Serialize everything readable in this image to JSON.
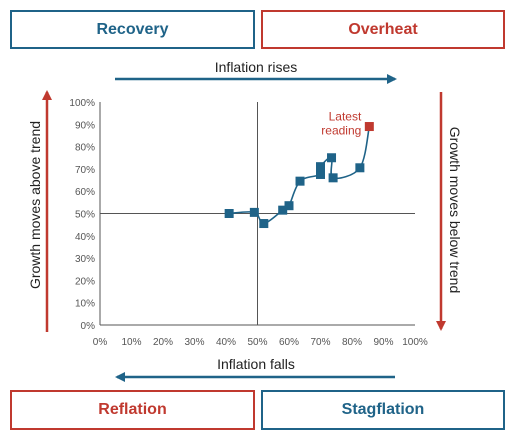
{
  "quadrants": {
    "top_left": "Recovery",
    "top_right": "Overheat",
    "bottom_left": "Reflation",
    "bottom_right": "Stagflation"
  },
  "arrows": {
    "top": "Inflation rises",
    "bottom": "Inflation falls",
    "left": "Growth moves above trend",
    "right": "Growth moves below trend"
  },
  "colors": {
    "blue": "#1f6388",
    "red": "#c0392f",
    "grid": "#555555"
  },
  "chart_data": {
    "type": "scatter",
    "title": "",
    "xlabel": "",
    "ylabel": "",
    "xlim": [
      0,
      100
    ],
    "ylim": [
      0,
      100
    ],
    "x_ticks": [
      "0%",
      "10%",
      "20%",
      "30%",
      "40%",
      "50%",
      "60%",
      "70%",
      "80%",
      "90%",
      "100%"
    ],
    "y_ticks": [
      "0%",
      "10%",
      "20%",
      "30%",
      "40%",
      "50%",
      "60%",
      "70%",
      "80%",
      "90%",
      "100%"
    ],
    "reference_lines": {
      "x": 50,
      "y": 50
    },
    "series": [
      {
        "points": [
          {
            "x": 41,
            "y": 50
          },
          {
            "x": 49,
            "y": 50.5
          },
          {
            "x": 52,
            "y": 45.5
          },
          {
            "x": 58,
            "y": 51.5
          },
          {
            "x": 60,
            "y": 53.5
          },
          {
            "x": 63.5,
            "y": 64.5
          },
          {
            "x": 70,
            "y": 67.5
          },
          {
            "x": 70,
            "y": 71
          },
          {
            "x": 73.5,
            "y": 75
          },
          {
            "x": 74,
            "y": 66
          },
          {
            "x": 82.5,
            "y": 70.5
          },
          {
            "x": 85.5,
            "y": 89
          }
        ]
      }
    ],
    "latest": {
      "x": 85.5,
      "y": 89,
      "label_line1": "Latest",
      "label_line2": "reading"
    }
  }
}
